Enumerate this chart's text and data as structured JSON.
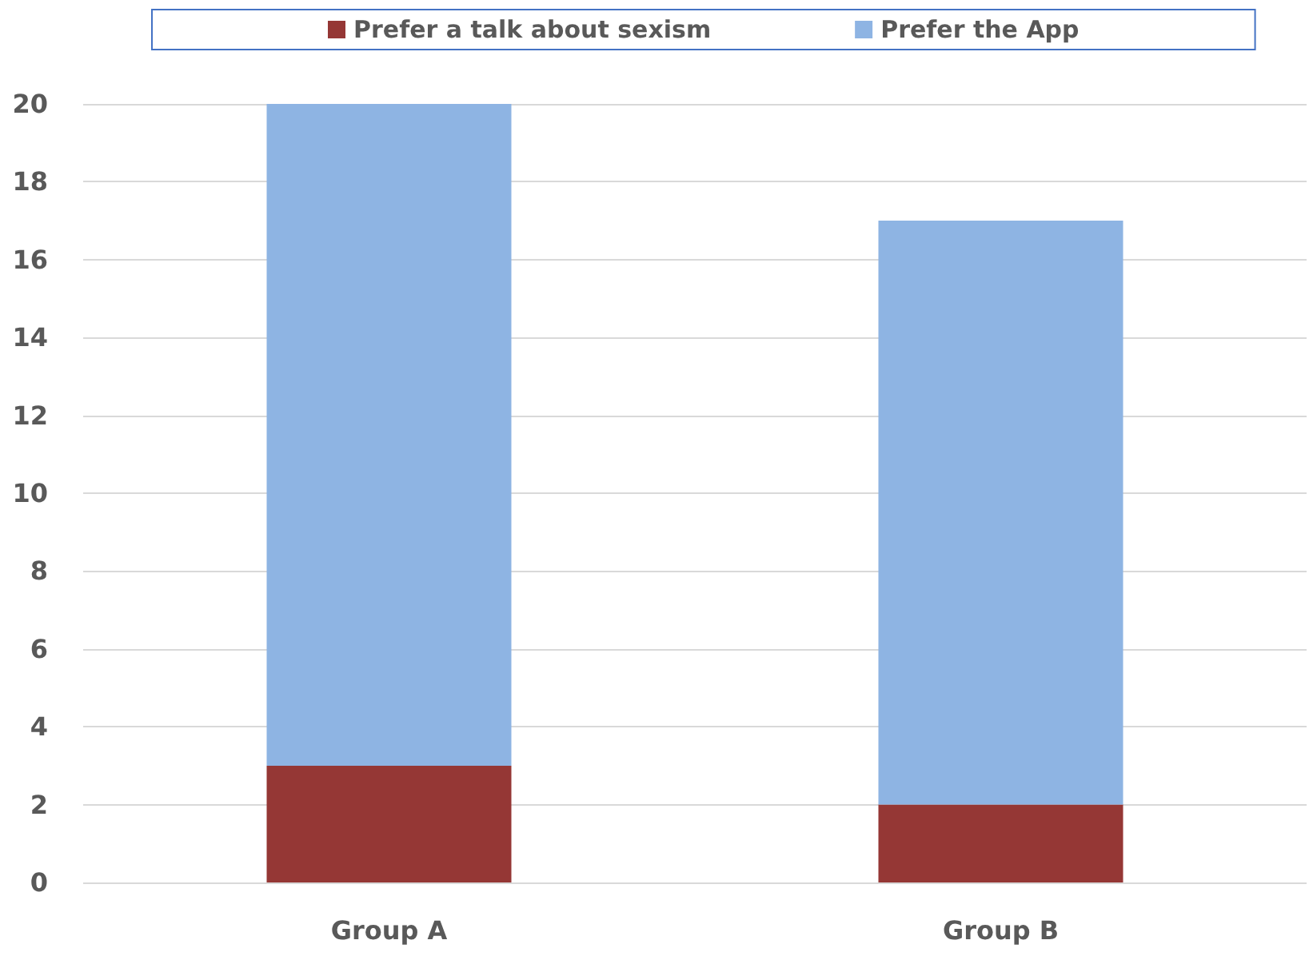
{
  "chart_data": {
    "type": "bar",
    "stacked": true,
    "categories": [
      "Group A",
      "Group B"
    ],
    "series": [
      {
        "name": "Prefer a talk about sexism",
        "color": "#953735",
        "values": [
          3,
          2
        ]
      },
      {
        "name": "Prefer the App",
        "color": "#8eb4e3",
        "values": [
          17,
          15
        ]
      }
    ],
    "ylim": [
      0,
      20
    ],
    "yticks": [
      0,
      2,
      4,
      6,
      8,
      10,
      12,
      14,
      16,
      18,
      20
    ],
    "grid": "y",
    "legend": "top"
  }
}
